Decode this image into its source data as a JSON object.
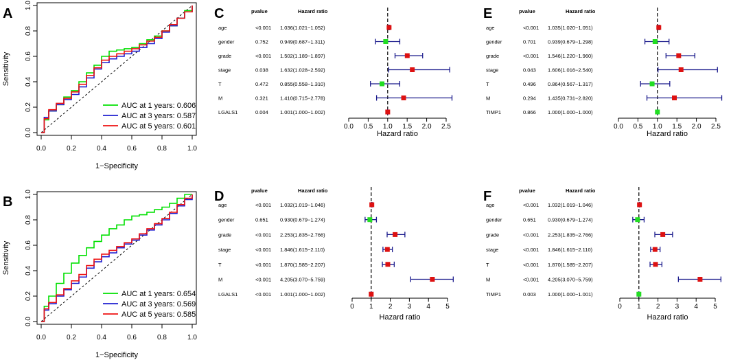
{
  "colors": {
    "green": "#00e000",
    "blue": "#1f1fd0",
    "red": "#ee1111",
    "navy": "#1a1a8c",
    "forest_red": "#dd1111",
    "forest_green": "#22dd22"
  },
  "roc_panels": [
    {
      "letter": "A",
      "xlabel": "1−Specificity",
      "ylabel": "Sensitivity",
      "ticks": [
        "0.0",
        "0.2",
        "0.4",
        "0.6",
        "0.8",
        "1.0"
      ],
      "legend": [
        {
          "label": "AUC at 1 years: 0.606",
          "color": "#00e000"
        },
        {
          "label": "AUC at 3 years: 0.587",
          "color": "#1f1fd0"
        },
        {
          "label": "AUC at 5 years: 0.601",
          "color": "#ee1111"
        }
      ]
    },
    {
      "letter": "B",
      "xlabel": "1−Specificity",
      "ylabel": "Sensitivity",
      "ticks": [
        "0.0",
        "0.2",
        "0.4",
        "0.6",
        "0.8",
        "1.0"
      ],
      "legend": [
        {
          "label": "AUC at 1 years: 0.654",
          "color": "#00e000"
        },
        {
          "label": "AUC at 3 years: 0.569",
          "color": "#1f1fd0"
        },
        {
          "label": "AUC at 5 years: 0.585",
          "color": "#ee1111"
        }
      ]
    }
  ],
  "forest_panels": [
    {
      "letter": "C",
      "pvalue_header": "pvalue",
      "hr_header": "Hazard ratio",
      "xlabel": "Hazard ratio",
      "ticks": [
        "0.0",
        "0.5",
        "1.0",
        "1.5",
        "2.0",
        "2.5"
      ],
      "rows": [
        {
          "name": "age",
          "pvalue": "<0.001",
          "hr_text": "1.036(1.021−1.052)"
        },
        {
          "name": "gender",
          "pvalue": "0.752",
          "hr_text": "0.949(0.687−1.311)"
        },
        {
          "name": "grade",
          "pvalue": "<0.001",
          "hr_text": "1.502(1.189−1.897)"
        },
        {
          "name": "stage",
          "pvalue": "0.038",
          "hr_text": "1.632(1.028−2.592)"
        },
        {
          "name": "T",
          "pvalue": "0.472",
          "hr_text": "0.855(0.558−1.310)"
        },
        {
          "name": "M",
          "pvalue": "0.321",
          "hr_text": "1.410(0.715−2.778)"
        },
        {
          "name": "LGALS1",
          "pvalue": "0.004",
          "hr_text": "1.001(1.000−1.002)"
        }
      ]
    },
    {
      "letter": "D",
      "pvalue_header": "pvalue",
      "hr_header": "Hazard ratio",
      "xlabel": "Hazard ratio",
      "ticks": [
        "0",
        "1",
        "2",
        "3",
        "4",
        "5"
      ],
      "rows": [
        {
          "name": "age",
          "pvalue": "<0.001",
          "hr_text": "1.032(1.019−1.046)"
        },
        {
          "name": "gender",
          "pvalue": "0.651",
          "hr_text": "0.930(0.679−1.274)"
        },
        {
          "name": "grade",
          "pvalue": "<0.001",
          "hr_text": "2.253(1.835−2.766)"
        },
        {
          "name": "stage",
          "pvalue": "<0.001",
          "hr_text": "1.846(1.615−2.110)"
        },
        {
          "name": "T",
          "pvalue": "<0.001",
          "hr_text": "1.870(1.585−2.207)"
        },
        {
          "name": "M",
          "pvalue": "<0.001",
          "hr_text": "4.205(3.070−5.759)"
        },
        {
          "name": "LGALS1",
          "pvalue": "<0.001",
          "hr_text": "1.001(1.000−1.002)"
        }
      ]
    },
    {
      "letter": "E",
      "pvalue_header": "pvalue",
      "hr_header": "Hazard ratio",
      "xlabel": "Hazard ratio",
      "ticks": [
        "0.0",
        "0.5",
        "1.0",
        "1.5",
        "2.0",
        "2.5"
      ],
      "rows": [
        {
          "name": "age",
          "pvalue": "<0.001",
          "hr_text": "1.035(1.020−1.051)"
        },
        {
          "name": "gender",
          "pvalue": "0.701",
          "hr_text": "0.939(0.679−1.298)"
        },
        {
          "name": "grade",
          "pvalue": "<0.001",
          "hr_text": "1.546(1.220−1.960)"
        },
        {
          "name": "stage",
          "pvalue": "0.043",
          "hr_text": "1.606(1.016−2.540)"
        },
        {
          "name": "T",
          "pvalue": "0.496",
          "hr_text": "0.864(0.567−1.317)"
        },
        {
          "name": "M",
          "pvalue": "0.294",
          "hr_text": "1.435(0.731−2.820)"
        },
        {
          "name": "TIMP1",
          "pvalue": "0.866",
          "hr_text": "1.000(1.000−1.000)"
        }
      ]
    },
    {
      "letter": "F",
      "pvalue_header": "pvalue",
      "hr_header": "Hazard ratio",
      "xlabel": "Hazard ratio",
      "ticks": [
        "0",
        "1",
        "2",
        "3",
        "4",
        "5"
      ],
      "rows": [
        {
          "name": "age",
          "pvalue": "<0.001",
          "hr_text": "1.032(1.019−1.046)"
        },
        {
          "name": "gender",
          "pvalue": "0.651",
          "hr_text": "0.930(0.679−1.274)"
        },
        {
          "name": "grade",
          "pvalue": "<0.001",
          "hr_text": "2.253(1.835−2.766)"
        },
        {
          "name": "stage",
          "pvalue": "<0.001",
          "hr_text": "1.846(1.615−2.110)"
        },
        {
          "name": "T",
          "pvalue": "<0.001",
          "hr_text": "1.870(1.585−2.207)"
        },
        {
          "name": "M",
          "pvalue": "<0.001",
          "hr_text": "4.205(3.070−5.759)"
        },
        {
          "name": "TIMP1",
          "pvalue": "0.003",
          "hr_text": "1.000(1.000−1.001)"
        }
      ]
    }
  ],
  "chart_data": [
    {
      "type": "line",
      "panel": "A",
      "title": "",
      "xlabel": "1−Specificity",
      "ylabel": "Sensitivity",
      "xlim": [
        0,
        1
      ],
      "ylim": [
        0,
        1
      ],
      "reference_line": "diagonal",
      "series": [
        {
          "name": "AUC at 1 years: 0.606",
          "color": "#00e000",
          "x": [
            0,
            0.02,
            0.05,
            0.1,
            0.15,
            0.2,
            0.25,
            0.3,
            0.35,
            0.4,
            0.45,
            0.5,
            0.55,
            0.6,
            0.65,
            0.7,
            0.75,
            0.8,
            0.85,
            0.9,
            0.95,
            1.0
          ],
          "y": [
            0,
            0.1,
            0.17,
            0.22,
            0.28,
            0.33,
            0.4,
            0.47,
            0.53,
            0.6,
            0.64,
            0.65,
            0.66,
            0.67,
            0.7,
            0.73,
            0.76,
            0.8,
            0.84,
            0.9,
            0.96,
            1.0
          ]
        },
        {
          "name": "AUC at 3 years: 0.587",
          "color": "#1f1fd0",
          "x": [
            0,
            0.02,
            0.05,
            0.1,
            0.15,
            0.2,
            0.25,
            0.3,
            0.35,
            0.4,
            0.45,
            0.5,
            0.55,
            0.6,
            0.65,
            0.7,
            0.75,
            0.8,
            0.85,
            0.9,
            0.95,
            1.0
          ],
          "y": [
            0,
            0.12,
            0.17,
            0.22,
            0.26,
            0.3,
            0.36,
            0.43,
            0.5,
            0.55,
            0.58,
            0.6,
            0.62,
            0.64,
            0.67,
            0.7,
            0.74,
            0.79,
            0.84,
            0.9,
            0.95,
            1.0
          ]
        },
        {
          "name": "AUC at 5 years: 0.601",
          "color": "#ee1111",
          "x": [
            0,
            0.02,
            0.05,
            0.1,
            0.15,
            0.2,
            0.25,
            0.3,
            0.35,
            0.4,
            0.45,
            0.5,
            0.55,
            0.6,
            0.65,
            0.7,
            0.75,
            0.8,
            0.85,
            0.9,
            0.95,
            1.0
          ],
          "y": [
            0,
            0.11,
            0.18,
            0.23,
            0.27,
            0.32,
            0.38,
            0.45,
            0.51,
            0.57,
            0.6,
            0.62,
            0.64,
            0.66,
            0.69,
            0.72,
            0.75,
            0.8,
            0.85,
            0.9,
            0.95,
            1.0
          ]
        }
      ]
    },
    {
      "type": "line",
      "panel": "B",
      "title": "",
      "xlabel": "1−Specificity",
      "ylabel": "Sensitivity",
      "xlim": [
        0,
        1
      ],
      "ylim": [
        0,
        1
      ],
      "reference_line": "diagonal",
      "series": [
        {
          "name": "AUC at 1 years: 0.654",
          "color": "#00e000",
          "x": [
            0,
            0.02,
            0.05,
            0.1,
            0.15,
            0.2,
            0.25,
            0.3,
            0.35,
            0.4,
            0.45,
            0.5,
            0.55,
            0.6,
            0.65,
            0.7,
            0.75,
            0.8,
            0.85,
            0.9,
            0.95,
            1.0
          ],
          "y": [
            0,
            0.12,
            0.2,
            0.3,
            0.38,
            0.46,
            0.52,
            0.58,
            0.63,
            0.68,
            0.73,
            0.76,
            0.8,
            0.83,
            0.84,
            0.86,
            0.88,
            0.9,
            0.93,
            0.97,
            1.0,
            1.0
          ]
        },
        {
          "name": "AUC at 3 years: 0.569",
          "color": "#1f1fd0",
          "x": [
            0,
            0.02,
            0.05,
            0.1,
            0.15,
            0.2,
            0.25,
            0.3,
            0.35,
            0.4,
            0.45,
            0.5,
            0.55,
            0.6,
            0.65,
            0.7,
            0.75,
            0.8,
            0.85,
            0.9,
            0.95,
            1.0
          ],
          "y": [
            0,
            0.09,
            0.14,
            0.2,
            0.25,
            0.3,
            0.35,
            0.42,
            0.47,
            0.51,
            0.54,
            0.58,
            0.61,
            0.64,
            0.68,
            0.72,
            0.76,
            0.8,
            0.85,
            0.91,
            0.96,
            1.0
          ]
        },
        {
          "name": "AUC at 5 years: 0.585",
          "color": "#ee1111",
          "x": [
            0,
            0.02,
            0.05,
            0.1,
            0.15,
            0.2,
            0.25,
            0.3,
            0.35,
            0.4,
            0.45,
            0.5,
            0.55,
            0.6,
            0.65,
            0.7,
            0.75,
            0.8,
            0.85,
            0.9,
            0.95,
            1.0
          ],
          "y": [
            0,
            0.1,
            0.15,
            0.21,
            0.26,
            0.32,
            0.37,
            0.44,
            0.49,
            0.53,
            0.56,
            0.59,
            0.62,
            0.65,
            0.69,
            0.73,
            0.77,
            0.81,
            0.86,
            0.92,
            0.97,
            1.0
          ]
        }
      ]
    },
    {
      "type": "forest",
      "panel": "C",
      "xlabel": "Hazard ratio",
      "xlim": [
        0,
        2.5
      ],
      "reference": 1,
      "rows": [
        {
          "name": "age",
          "hr": 1.036,
          "lo": 1.021,
          "hi": 1.052,
          "color": "red"
        },
        {
          "name": "gender",
          "hr": 0.949,
          "lo": 0.687,
          "hi": 1.311,
          "color": "green"
        },
        {
          "name": "grade",
          "hr": 1.502,
          "lo": 1.189,
          "hi": 1.897,
          "color": "red"
        },
        {
          "name": "stage",
          "hr": 1.632,
          "lo": 1.028,
          "hi": 2.592,
          "color": "red"
        },
        {
          "name": "T",
          "hr": 0.855,
          "lo": 0.558,
          "hi": 1.31,
          "color": "green"
        },
        {
          "name": "M",
          "hr": 1.41,
          "lo": 0.715,
          "hi": 2.778,
          "color": "red"
        },
        {
          "name": "LGALS1",
          "hr": 1.001,
          "lo": 1.0,
          "hi": 1.002,
          "color": "red"
        }
      ]
    },
    {
      "type": "forest",
      "panel": "D",
      "xlabel": "Hazard ratio",
      "xlim": [
        0,
        5
      ],
      "reference": 1,
      "rows": [
        {
          "name": "age",
          "hr": 1.032,
          "lo": 1.019,
          "hi": 1.046,
          "color": "red"
        },
        {
          "name": "gender",
          "hr": 0.93,
          "lo": 0.679,
          "hi": 1.274,
          "color": "green"
        },
        {
          "name": "grade",
          "hr": 2.253,
          "lo": 1.835,
          "hi": 2.766,
          "color": "red"
        },
        {
          "name": "stage",
          "hr": 1.846,
          "lo": 1.615,
          "hi": 2.11,
          "color": "red"
        },
        {
          "name": "T",
          "hr": 1.87,
          "lo": 1.585,
          "hi": 2.207,
          "color": "red"
        },
        {
          "name": "M",
          "hr": 4.205,
          "lo": 3.07,
          "hi": 5.759,
          "color": "red"
        },
        {
          "name": "LGALS1",
          "hr": 1.001,
          "lo": 1.0,
          "hi": 1.002,
          "color": "red"
        }
      ]
    },
    {
      "type": "forest",
      "panel": "E",
      "xlabel": "Hazard ratio",
      "xlim": [
        0,
        2.5
      ],
      "reference": 1,
      "rows": [
        {
          "name": "age",
          "hr": 1.035,
          "lo": 1.02,
          "hi": 1.051,
          "color": "red"
        },
        {
          "name": "gender",
          "hr": 0.939,
          "lo": 0.679,
          "hi": 1.298,
          "color": "green"
        },
        {
          "name": "grade",
          "hr": 1.546,
          "lo": 1.22,
          "hi": 1.96,
          "color": "red"
        },
        {
          "name": "stage",
          "hr": 1.606,
          "lo": 1.016,
          "hi": 2.54,
          "color": "red"
        },
        {
          "name": "T",
          "hr": 0.864,
          "lo": 0.567,
          "hi": 1.317,
          "color": "green"
        },
        {
          "name": "M",
          "hr": 1.435,
          "lo": 0.731,
          "hi": 2.82,
          "color": "red"
        },
        {
          "name": "TIMP1",
          "hr": 1.0,
          "lo": 1.0,
          "hi": 1.0,
          "color": "green"
        }
      ]
    },
    {
      "type": "forest",
      "panel": "F",
      "xlabel": "Hazard ratio",
      "xlim": [
        0,
        5
      ],
      "reference": 1,
      "rows": [
        {
          "name": "age",
          "hr": 1.032,
          "lo": 1.019,
          "hi": 1.046,
          "color": "red"
        },
        {
          "name": "gender",
          "hr": 0.93,
          "lo": 0.679,
          "hi": 1.274,
          "color": "green"
        },
        {
          "name": "grade",
          "hr": 2.253,
          "lo": 1.835,
          "hi": 2.766,
          "color": "red"
        },
        {
          "name": "stage",
          "hr": 1.846,
          "lo": 1.615,
          "hi": 2.11,
          "color": "red"
        },
        {
          "name": "T",
          "hr": 1.87,
          "lo": 1.585,
          "hi": 2.207,
          "color": "red"
        },
        {
          "name": "M",
          "hr": 4.205,
          "lo": 3.07,
          "hi": 5.759,
          "color": "red"
        },
        {
          "name": "TIMP1",
          "hr": 1.0,
          "lo": 1.0,
          "hi": 1.001,
          "color": "green"
        }
      ]
    }
  ]
}
